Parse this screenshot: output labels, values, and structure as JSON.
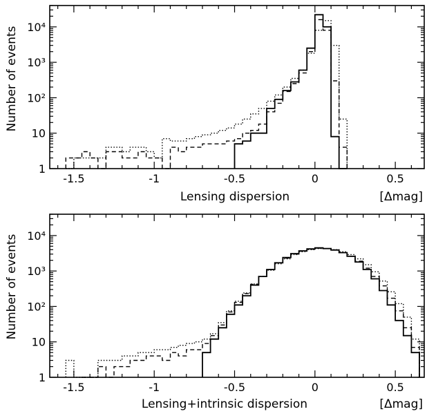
{
  "chart_data": [
    {
      "type": "histogram",
      "xlabel": "Lensing dispersion",
      "xunit": "[Δmag]",
      "ylabel": "Number of events",
      "xlim": [
        -1.65,
        0.68
      ],
      "ylim": [
        1,
        40000
      ],
      "yscale": "log",
      "grid": false,
      "x_ticks": [
        "-1.5",
        "-1",
        "-0.5",
        "0",
        "0.5"
      ],
      "y_ticks": [
        "1",
        "10",
        "10²",
        "10³",
        "10⁴"
      ],
      "bin_width": 0.05,
      "series": [
        {
          "style": "solid",
          "bins": [
            [
              -0.5,
              5
            ],
            [
              -0.45,
              6
            ],
            [
              -0.4,
              10
            ],
            [
              -0.35,
              10
            ],
            [
              -0.3,
              50
            ],
            [
              -0.25,
              90
            ],
            [
              -0.2,
              160
            ],
            [
              -0.15,
              280
            ],
            [
              -0.1,
              600
            ],
            [
              -0.05,
              2500
            ],
            [
              0.0,
              22000
            ],
            [
              0.05,
              10000
            ],
            [
              0.1,
              8
            ],
            [
              0.15,
              1
            ]
          ]
        },
        {
          "style": "dashed",
          "bins": [
            [
              -1.55,
              2
            ],
            [
              -1.5,
              2
            ],
            [
              -1.45,
              3
            ],
            [
              -1.4,
              2
            ],
            [
              -1.35,
              1
            ],
            [
              -1.3,
              3
            ],
            [
              -1.25,
              3
            ],
            [
              -1.2,
              2
            ],
            [
              -1.15,
              2
            ],
            [
              -1.1,
              3
            ],
            [
              -1.05,
              2
            ],
            [
              -1.0,
              2
            ],
            [
              -0.95,
              1
            ],
            [
              -0.9,
              4
            ],
            [
              -0.85,
              3
            ],
            [
              -0.8,
              4
            ],
            [
              -0.75,
              4
            ],
            [
              -0.7,
              5
            ],
            [
              -0.65,
              5
            ],
            [
              -0.6,
              5
            ],
            [
              -0.55,
              6
            ],
            [
              -0.5,
              7
            ],
            [
              -0.45,
              10
            ],
            [
              -0.4,
              12
            ],
            [
              -0.35,
              18
            ],
            [
              -0.3,
              40
            ],
            [
              -0.25,
              70
            ],
            [
              -0.2,
              150
            ],
            [
              -0.15,
              250
            ],
            [
              -0.1,
              500
            ],
            [
              -0.05,
              2000
            ],
            [
              0.0,
              16000
            ],
            [
              0.05,
              8000
            ],
            [
              0.1,
              300
            ],
            [
              0.15,
              4
            ]
          ]
        },
        {
          "style": "dotted",
          "bins": [
            [
              -1.55,
              1
            ],
            [
              -1.5,
              2
            ],
            [
              -1.45,
              2
            ],
            [
              -1.4,
              2
            ],
            [
              -1.35,
              2
            ],
            [
              -1.3,
              4
            ],
            [
              -1.25,
              4
            ],
            [
              -1.2,
              3
            ],
            [
              -1.15,
              4
            ],
            [
              -1.1,
              4
            ],
            [
              -1.05,
              3
            ],
            [
              -1.0,
              2
            ],
            [
              -0.95,
              7
            ],
            [
              -0.9,
              6
            ],
            [
              -0.85,
              6
            ],
            [
              -0.8,
              7
            ],
            [
              -0.75,
              8
            ],
            [
              -0.7,
              9
            ],
            [
              -0.65,
              10
            ],
            [
              -0.6,
              12
            ],
            [
              -0.55,
              14
            ],
            [
              -0.5,
              18
            ],
            [
              -0.45,
              25
            ],
            [
              -0.4,
              35
            ],
            [
              -0.35,
              50
            ],
            [
              -0.3,
              80
            ],
            [
              -0.25,
              120
            ],
            [
              -0.2,
              200
            ],
            [
              -0.15,
              350
            ],
            [
              -0.1,
              600
            ],
            [
              -0.05,
              1800
            ],
            [
              0.0,
              8000
            ],
            [
              0.05,
              15000
            ],
            [
              0.1,
              3000
            ],
            [
              0.15,
              25
            ]
          ]
        }
      ]
    },
    {
      "type": "histogram",
      "xlabel": "Lensing+intrinsic dispersion",
      "xunit": "[Δmag]",
      "ylabel": "Number of events",
      "xlim": [
        -1.65,
        0.68
      ],
      "ylim": [
        1,
        40000
      ],
      "yscale": "log",
      "grid": false,
      "x_ticks": [
        "-1.5",
        "-1",
        "-0.5",
        "0",
        "0.5"
      ],
      "y_ticks": [
        "1",
        "10",
        "10²",
        "10³",
        "10⁴"
      ],
      "bin_width": 0.05,
      "series": [
        {
          "style": "solid",
          "bins": [
            [
              -0.7,
              5
            ],
            [
              -0.65,
              12
            ],
            [
              -0.6,
              25
            ],
            [
              -0.55,
              60
            ],
            [
              -0.5,
              110
            ],
            [
              -0.45,
              200
            ],
            [
              -0.4,
              400
            ],
            [
              -0.35,
              700
            ],
            [
              -0.3,
              1100
            ],
            [
              -0.25,
              1700
            ],
            [
              -0.2,
              2400
            ],
            [
              -0.15,
              3100
            ],
            [
              -0.1,
              3700
            ],
            [
              -0.05,
              4200
            ],
            [
              0.0,
              4500
            ],
            [
              0.05,
              4300
            ],
            [
              0.1,
              3900
            ],
            [
              0.15,
              3300
            ],
            [
              0.2,
              2600
            ],
            [
              0.25,
              1800
            ],
            [
              0.3,
              1100
            ],
            [
              0.35,
              600
            ],
            [
              0.4,
              280
            ],
            [
              0.45,
              110
            ],
            [
              0.5,
              40
            ],
            [
              0.55,
              15
            ],
            [
              0.6,
              5
            ]
          ]
        },
        {
          "style": "dashed",
          "bins": [
            [
              -1.45,
              1
            ],
            [
              -1.4,
              1
            ],
            [
              -1.35,
              2
            ],
            [
              -1.3,
              1
            ],
            [
              -1.25,
              2
            ],
            [
              -1.2,
              2
            ],
            [
              -1.15,
              3
            ],
            [
              -1.1,
              3
            ],
            [
              -1.05,
              4
            ],
            [
              -1.0,
              4
            ],
            [
              -0.95,
              3
            ],
            [
              -0.9,
              5
            ],
            [
              -0.85,
              4
            ],
            [
              -0.8,
              6
            ],
            [
              -0.75,
              6
            ],
            [
              -0.7,
              9
            ],
            [
              -0.65,
              15
            ],
            [
              -0.6,
              30
            ],
            [
              -0.55,
              70
            ],
            [
              -0.5,
              130
            ],
            [
              -0.45,
              230
            ],
            [
              -0.4,
              420
            ],
            [
              -0.35,
              700
            ],
            [
              -0.3,
              1100
            ],
            [
              -0.25,
              1700
            ],
            [
              -0.2,
              2300
            ],
            [
              -0.15,
              3000
            ],
            [
              -0.1,
              3600
            ],
            [
              -0.05,
              4100
            ],
            [
              0.0,
              4400
            ],
            [
              0.05,
              4300
            ],
            [
              0.1,
              3900
            ],
            [
              0.15,
              3300
            ],
            [
              0.2,
              2600
            ],
            [
              0.25,
              1900
            ],
            [
              0.3,
              1200
            ],
            [
              0.35,
              700
            ],
            [
              0.4,
              380
            ],
            [
              0.45,
              170
            ],
            [
              0.5,
              75
            ],
            [
              0.55,
              25
            ],
            [
              0.6,
              7
            ]
          ]
        },
        {
          "style": "dotted",
          "bins": [
            [
              -1.55,
              3
            ],
            [
              -1.5,
              1
            ],
            [
              -1.45,
              1
            ],
            [
              -1.4,
              1
            ],
            [
              -1.35,
              3
            ],
            [
              -1.3,
              3
            ],
            [
              -1.25,
              3
            ],
            [
              -1.2,
              4
            ],
            [
              -1.15,
              4
            ],
            [
              -1.1,
              5
            ],
            [
              -1.05,
              5
            ],
            [
              -1.0,
              6
            ],
            [
              -0.95,
              6
            ],
            [
              -0.9,
              7
            ],
            [
              -0.85,
              8
            ],
            [
              -0.8,
              9
            ],
            [
              -0.75,
              10
            ],
            [
              -0.7,
              12
            ],
            [
              -0.65,
              17
            ],
            [
              -0.6,
              35
            ],
            [
              -0.55,
              75
            ],
            [
              -0.5,
              140
            ],
            [
              -0.45,
              240
            ],
            [
              -0.4,
              430
            ],
            [
              -0.35,
              700
            ],
            [
              -0.3,
              1050
            ],
            [
              -0.25,
              1600
            ],
            [
              -0.2,
              2200
            ],
            [
              -0.15,
              2900
            ],
            [
              -0.1,
              3500
            ],
            [
              -0.05,
              4000
            ],
            [
              0.0,
              4300
            ],
            [
              0.05,
              4300
            ],
            [
              0.1,
              4000
            ],
            [
              0.15,
              3500
            ],
            [
              0.2,
              2900
            ],
            [
              0.25,
              2200
            ],
            [
              0.3,
              1500
            ],
            [
              0.35,
              950
            ],
            [
              0.4,
              520
            ],
            [
              0.45,
              260
            ],
            [
              0.5,
              120
            ],
            [
              0.55,
              50
            ],
            [
              0.6,
              12
            ]
          ]
        }
      ]
    }
  ]
}
